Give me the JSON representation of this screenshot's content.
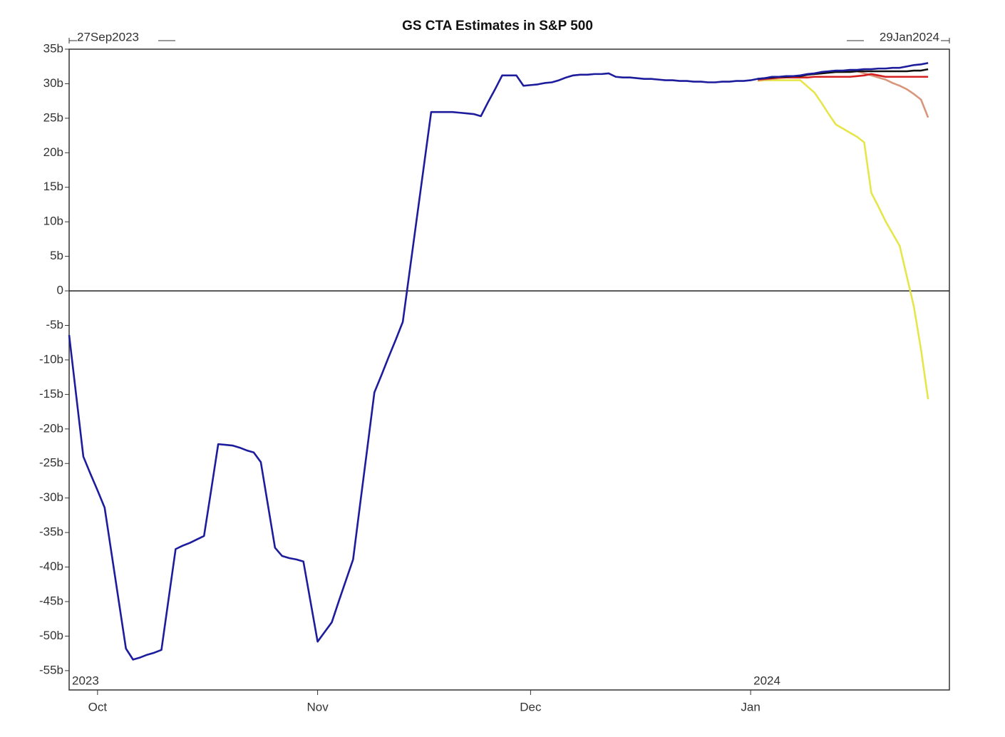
{
  "chart_data": {
    "type": "line",
    "title": "GS CTA Estimates in S&P 500",
    "range_start_label": "27Sep2023",
    "range_end_label": "29Jan2024",
    "year_labels": [
      "2023",
      "2024"
    ],
    "categories": [
      null,
      null,
      null,
      null,
      "Oct",
      null,
      null,
      null,
      null,
      null,
      null,
      null,
      null,
      null,
      null,
      null,
      null,
      null,
      null,
      null,
      null,
      null,
      null,
      null,
      null,
      null,
      null,
      null,
      null,
      null,
      null,
      null,
      null,
      null,
      null,
      "Nov",
      null,
      null,
      null,
      null,
      null,
      null,
      null,
      null,
      null,
      null,
      null,
      null,
      null,
      null,
      null,
      null,
      null,
      null,
      null,
      null,
      null,
      null,
      null,
      null,
      null,
      null,
      null,
      null,
      null,
      "Dec",
      null,
      null,
      null,
      null,
      null,
      null,
      null,
      null,
      null,
      null,
      null,
      null,
      null,
      null,
      null,
      null,
      null,
      null,
      null,
      null,
      null,
      null,
      null,
      null,
      null,
      null,
      null,
      null,
      null,
      null,
      "Jan",
      null,
      null,
      null,
      null,
      null,
      null,
      null,
      null,
      null,
      null,
      null,
      null,
      null,
      null,
      null,
      null,
      null,
      null,
      null,
      null,
      null,
      null,
      null,
      null,
      null,
      null,
      null,
      null
    ],
    "series": [
      {
        "color": "#1c1c9c",
        "values": [
          -6.4,
          -15.2,
          -24,
          -26.5,
          -28.9,
          -31.4,
          -38.2,
          -45,
          -51.8,
          -53.4,
          -53.1,
          -52.7,
          -52.4,
          -52,
          -44.7,
          -37.4,
          -36.9,
          -36.5,
          -36,
          -35.5,
          -28.9,
          -22.2,
          -22.3,
          -22.4,
          -22.7,
          -23.1,
          -23.4,
          -24.8,
          -31,
          -37.2,
          -38.4,
          -38.7,
          -38.9,
          -39.2,
          -45,
          -50.8,
          -49.4,
          -48,
          -44.9,
          -41.9,
          -38.9,
          -30.8,
          -22.8,
          -14.7,
          -12.2,
          -9.6,
          -7.1,
          -4.5,
          3.1,
          10.7,
          18.3,
          25.9,
          25.9,
          25.9,
          25.9,
          25.8,
          25.7,
          25.6,
          25.3,
          27.3,
          29.2,
          31.2,
          31.2,
          31.2,
          29.7,
          29.8,
          29.9,
          30.1,
          30.2,
          30.5,
          30.9,
          31.2,
          31.3,
          31.3,
          31.4,
          31.4,
          31.5,
          31,
          30.9,
          30.9,
          30.8,
          30.7,
          30.7,
          30.6,
          30.5,
          30.5,
          30.4,
          30.4,
          30.3,
          30.3,
          30.2,
          30.2,
          30.3,
          30.3,
          30.4,
          30.4,
          30.5,
          30.7,
          30.8,
          31,
          31,
          31.1,
          31.1,
          31.2,
          31.4,
          31.5,
          31.7,
          31.8,
          31.9,
          31.9,
          32,
          32,
          32.1,
          32.1,
          32.2,
          32.2,
          32.3,
          32.3,
          32.5,
          32.7,
          32.8,
          33,
          null,
          null,
          null
        ]
      },
      {
        "color": "#111111",
        "values": [
          null,
          null,
          null,
          null,
          null,
          null,
          null,
          null,
          null,
          null,
          null,
          null,
          null,
          null,
          null,
          null,
          null,
          null,
          null,
          null,
          null,
          null,
          null,
          null,
          null,
          null,
          null,
          null,
          null,
          null,
          null,
          null,
          null,
          null,
          null,
          null,
          null,
          null,
          null,
          null,
          null,
          null,
          null,
          null,
          null,
          null,
          null,
          null,
          null,
          null,
          null,
          null,
          null,
          null,
          null,
          null,
          null,
          null,
          null,
          null,
          null,
          null,
          null,
          null,
          null,
          null,
          null,
          null,
          null,
          null,
          null,
          null,
          null,
          null,
          null,
          null,
          null,
          null,
          null,
          null,
          null,
          null,
          null,
          null,
          null,
          null,
          null,
          null,
          null,
          null,
          null,
          null,
          null,
          null,
          null,
          null,
          null,
          30.7,
          30.8,
          30.9,
          31,
          31,
          31.1,
          31.1,
          31.3,
          31.4,
          31.5,
          31.6,
          31.7,
          31.7,
          31.7,
          31.8,
          31.8,
          31.8,
          31.8,
          31.8,
          31.8,
          31.8,
          31.8,
          31.9,
          31.9,
          32.1,
          null,
          null,
          null
        ]
      },
      {
        "color": "#d42020",
        "values": [
          null,
          null,
          null,
          null,
          null,
          null,
          null,
          null,
          null,
          null,
          null,
          null,
          null,
          null,
          null,
          null,
          null,
          null,
          null,
          null,
          null,
          null,
          null,
          null,
          null,
          null,
          null,
          null,
          null,
          null,
          null,
          null,
          null,
          null,
          null,
          null,
          null,
          null,
          null,
          null,
          null,
          null,
          null,
          null,
          null,
          null,
          null,
          null,
          null,
          null,
          null,
          null,
          null,
          null,
          null,
          null,
          null,
          null,
          null,
          null,
          null,
          null,
          null,
          null,
          null,
          null,
          null,
          null,
          null,
          null,
          null,
          null,
          null,
          null,
          null,
          null,
          null,
          null,
          null,
          null,
          null,
          null,
          null,
          null,
          null,
          null,
          null,
          null,
          null,
          null,
          null,
          null,
          null,
          null,
          null,
          null,
          null,
          30.6,
          30.7,
          30.8,
          30.9,
          30.9,
          30.9,
          30.9,
          30.9,
          31,
          31,
          31,
          31,
          31,
          31,
          31.1,
          31.2,
          31.4,
          31.2,
          31,
          31,
          31,
          31,
          31,
          31,
          31,
          null,
          null,
          null
        ]
      },
      {
        "color": "#d8967a",
        "values": [
          null,
          null,
          null,
          null,
          null,
          null,
          null,
          null,
          null,
          null,
          null,
          null,
          null,
          null,
          null,
          null,
          null,
          null,
          null,
          null,
          null,
          null,
          null,
          null,
          null,
          null,
          null,
          null,
          null,
          null,
          null,
          null,
          null,
          null,
          null,
          null,
          null,
          null,
          null,
          null,
          null,
          null,
          null,
          null,
          null,
          null,
          null,
          null,
          null,
          null,
          null,
          null,
          null,
          null,
          null,
          null,
          null,
          null,
          null,
          null,
          null,
          null,
          null,
          null,
          null,
          null,
          null,
          null,
          null,
          null,
          null,
          null,
          null,
          null,
          null,
          null,
          null,
          null,
          null,
          null,
          null,
          null,
          null,
          null,
          null,
          null,
          null,
          null,
          null,
          null,
          null,
          null,
          null,
          null,
          null,
          null,
          null,
          30.5,
          30.6,
          30.7,
          30.8,
          30.9,
          31,
          31.1,
          31.3,
          31.4,
          31.5,
          31.6,
          31.7,
          31.7,
          31.8,
          31.8,
          31.5,
          31.2,
          30.9,
          30.6,
          30.1,
          29.7,
          29.2,
          28.5,
          27.7,
          25.1,
          null,
          null,
          null
        ]
      },
      {
        "color": "#e6e64a",
        "values": [
          null,
          null,
          null,
          null,
          null,
          null,
          null,
          null,
          null,
          null,
          null,
          null,
          null,
          null,
          null,
          null,
          null,
          null,
          null,
          null,
          null,
          null,
          null,
          null,
          null,
          null,
          null,
          null,
          null,
          null,
          null,
          null,
          null,
          null,
          null,
          null,
          null,
          null,
          null,
          null,
          null,
          null,
          null,
          null,
          null,
          null,
          null,
          null,
          null,
          null,
          null,
          null,
          null,
          null,
          null,
          null,
          null,
          null,
          null,
          null,
          null,
          null,
          null,
          null,
          null,
          null,
          null,
          null,
          null,
          null,
          null,
          null,
          null,
          null,
          null,
          null,
          null,
          null,
          null,
          null,
          null,
          null,
          null,
          null,
          null,
          null,
          null,
          null,
          null,
          null,
          null,
          null,
          null,
          null,
          null,
          null,
          null,
          30.4,
          30.5,
          30.5,
          30.5,
          30.5,
          30.5,
          30.5,
          29.6,
          28.7,
          27.2,
          25.6,
          24.1,
          23.5,
          22.9,
          22.3,
          21.5,
          14.2,
          12.2,
          10.1,
          8.3,
          6.5,
          2.1,
          -2.3,
          -8.5,
          -15.7,
          null,
          null,
          null
        ]
      }
    ],
    "ylim": [
      -57.8,
      35
    ],
    "yticks": [
      {
        "value": 35,
        "label": "35b"
      },
      {
        "value": 30,
        "label": "30b"
      },
      {
        "value": 25,
        "label": "25b"
      },
      {
        "value": 20,
        "label": "20b"
      },
      {
        "value": 15,
        "label": "15b"
      },
      {
        "value": 10,
        "label": "10b"
      },
      {
        "value": 5,
        "label": "5b"
      },
      0,
      {
        "value": -5,
        "label": "-5b"
      },
      {
        "value": -10,
        "label": "-10b"
      },
      {
        "value": -15,
        "label": "-15b"
      },
      {
        "value": -20,
        "label": "-20b"
      },
      {
        "value": -25,
        "label": "-25b"
      },
      {
        "value": -30,
        "label": "-30b"
      },
      {
        "value": -35,
        "label": "-35b"
      },
      {
        "value": -40,
        "label": "-40b"
      },
      {
        "value": -45,
        "label": "-45b"
      },
      {
        "value": -50,
        "label": "-50b"
      },
      {
        "value": -55,
        "label": "-55b"
      }
    ],
    "zero_line": true,
    "grid": false
  }
}
